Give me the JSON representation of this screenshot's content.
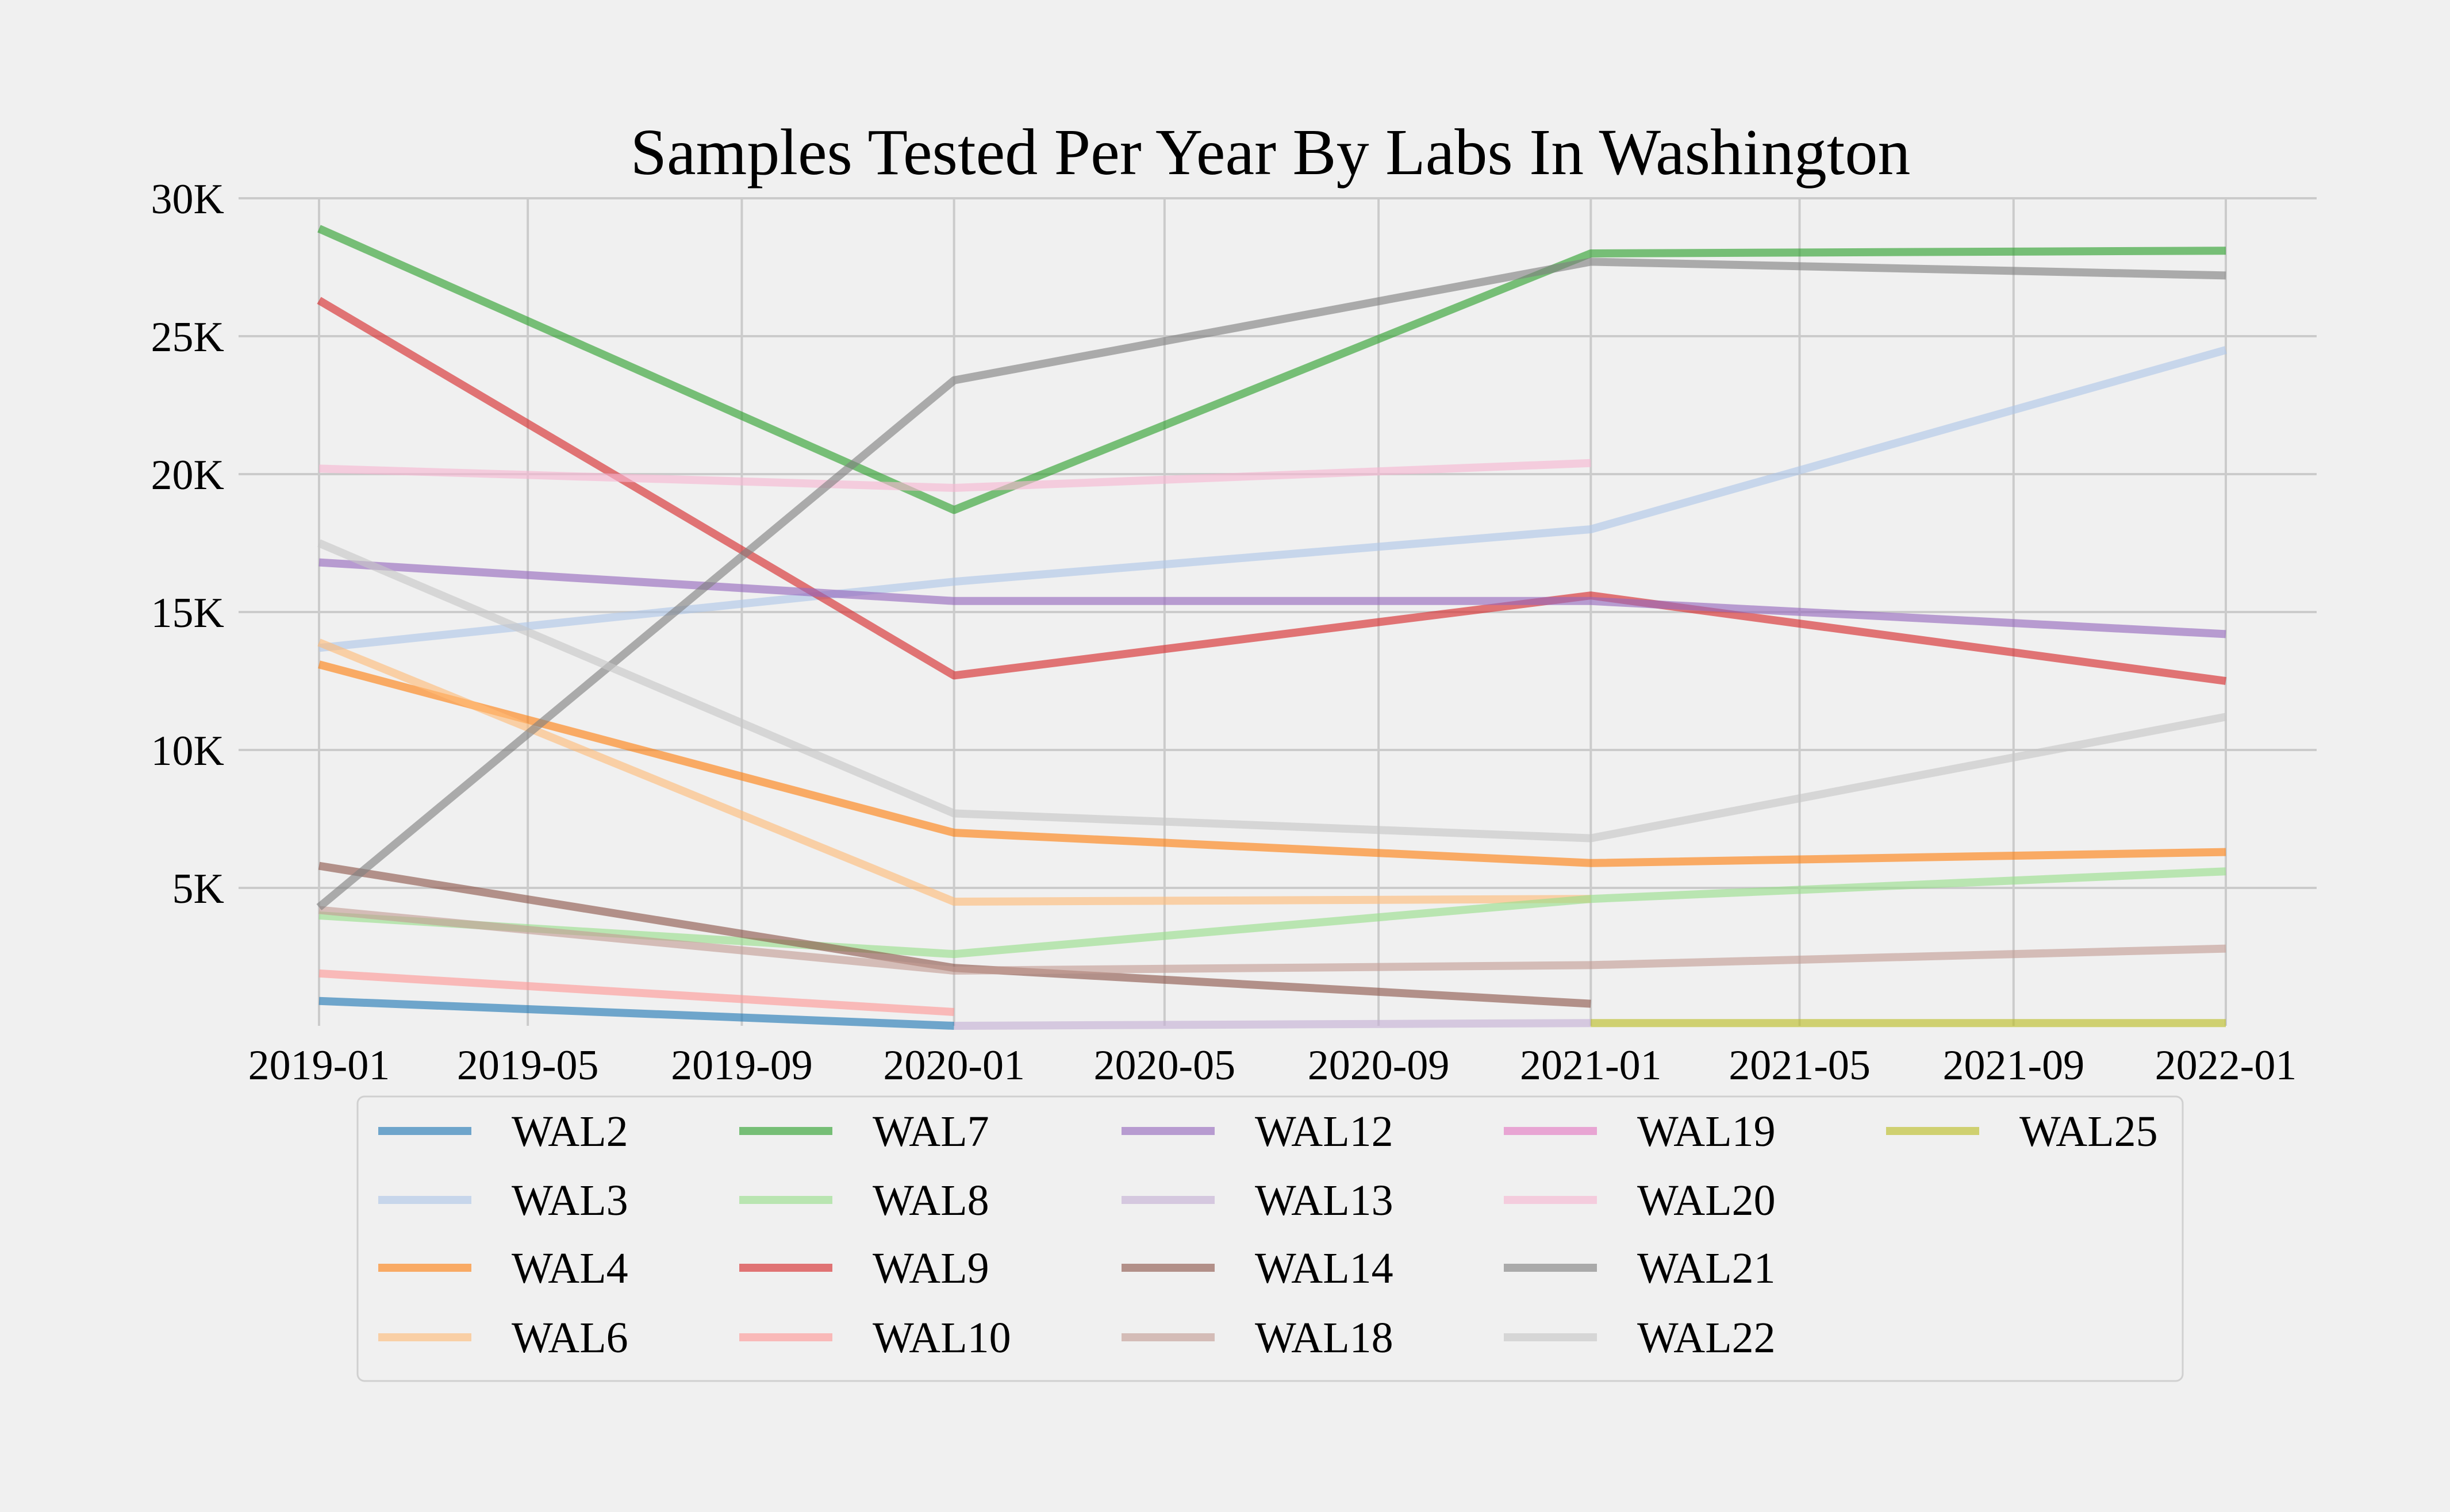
{
  "chart_data": {
    "type": "line",
    "title": "Samples Tested Per Year By Labs In Washington",
    "xlabel": "",
    "ylabel": "",
    "x_ticks": [
      "2019-01",
      "2019-05",
      "2019-09",
      "2020-01",
      "2020-05",
      "2020-09",
      "2021-01",
      "2021-05",
      "2021-09",
      "2022-01"
    ],
    "y_ticks": [
      "5K",
      "10K",
      "15K",
      "20K",
      "25K",
      "30K"
    ],
    "ylim": [
      0,
      30000
    ],
    "grid": true,
    "legend_position": "bottom",
    "series": [
      {
        "name": "WAL2",
        "color": "#1f77b4",
        "points": [
          [
            "2019-01-01",
            900
          ],
          [
            "2020-01-01",
            0
          ]
        ]
      },
      {
        "name": "WAL3",
        "color": "#aec7e8",
        "points": [
          [
            "2019-01-01",
            13700
          ],
          [
            "2020-01-01",
            16100
          ],
          [
            "2021-01-01",
            18000
          ],
          [
            "2022-01-01",
            24500
          ]
        ]
      },
      {
        "name": "WAL4",
        "color": "#ff7f0e",
        "points": [
          [
            "2019-01-01",
            13100
          ],
          [
            "2020-01-01",
            7000
          ],
          [
            "2021-01-01",
            5900
          ],
          [
            "2022-01-01",
            6300
          ]
        ]
      },
      {
        "name": "WAL6",
        "color": "#ffbb78",
        "points": [
          [
            "2019-01-01",
            13900
          ],
          [
            "2020-01-01",
            4500
          ],
          [
            "2021-01-01",
            4600
          ]
        ]
      },
      {
        "name": "WAL7",
        "color": "#2ca02c",
        "points": [
          [
            "2019-01-01",
            28900
          ],
          [
            "2020-01-01",
            18700
          ],
          [
            "2021-01-01",
            28000
          ],
          [
            "2022-01-01",
            28100
          ]
        ]
      },
      {
        "name": "WAL8",
        "color": "#98df8a",
        "points": [
          [
            "2019-01-01",
            4000
          ],
          [
            "2020-01-01",
            2600
          ],
          [
            "2021-01-01",
            4600
          ],
          [
            "2022-01-01",
            5600
          ]
        ]
      },
      {
        "name": "WAL9",
        "color": "#d62728",
        "points": [
          [
            "2019-01-01",
            26300
          ],
          [
            "2020-01-01",
            12700
          ],
          [
            "2021-01-01",
            15600
          ],
          [
            "2022-01-01",
            12500
          ]
        ]
      },
      {
        "name": "WAL10",
        "color": "#ff9896",
        "points": [
          [
            "2019-01-01",
            1900
          ],
          [
            "2020-01-01",
            500
          ]
        ]
      },
      {
        "name": "WAL12",
        "color": "#9467bd",
        "points": [
          [
            "2019-01-01",
            16800
          ],
          [
            "2020-01-01",
            15400
          ],
          [
            "2021-01-01",
            15400
          ],
          [
            "2022-01-01",
            14200
          ]
        ]
      },
      {
        "name": "WAL13",
        "color": "#c5b0d5",
        "points": [
          [
            "2020-01-01",
            0
          ],
          [
            "2021-01-01",
            100
          ]
        ]
      },
      {
        "name": "WAL14",
        "color": "#8c564b",
        "points": [
          [
            "2019-01-01",
            5800
          ],
          [
            "2020-01-01",
            2100
          ],
          [
            "2021-01-01",
            800
          ]
        ]
      },
      {
        "name": "WAL18",
        "color": "#c49c94",
        "points": [
          [
            "2019-01-01",
            4200
          ],
          [
            "2020-01-01",
            2000
          ],
          [
            "2021-01-01",
            2200
          ],
          [
            "2022-01-01",
            2800
          ]
        ]
      },
      {
        "name": "WAL19",
        "color": "#e377c2",
        "points": []
      },
      {
        "name": "WAL20",
        "color": "#f7b6d2",
        "points": [
          [
            "2019-01-01",
            20200
          ],
          [
            "2020-01-01",
            19500
          ],
          [
            "2021-01-01",
            20400
          ]
        ]
      },
      {
        "name": "WAL21",
        "color": "#7f7f7f",
        "points": [
          [
            "2019-01-01",
            4300
          ],
          [
            "2020-01-01",
            23400
          ],
          [
            "2021-01-01",
            27700
          ],
          [
            "2022-01-01",
            27200
          ]
        ]
      },
      {
        "name": "WAL22",
        "color": "#c7c7c7",
        "points": [
          [
            "2019-01-01",
            17500
          ],
          [
            "2020-01-01",
            7700
          ],
          [
            "2021-01-01",
            6800
          ],
          [
            "2022-01-01",
            11200
          ]
        ]
      },
      {
        "name": "WAL25",
        "color": "#bcbd22",
        "points": [
          [
            "2021-01-01",
            100
          ],
          [
            "2022-01-01",
            100
          ]
        ]
      }
    ]
  }
}
